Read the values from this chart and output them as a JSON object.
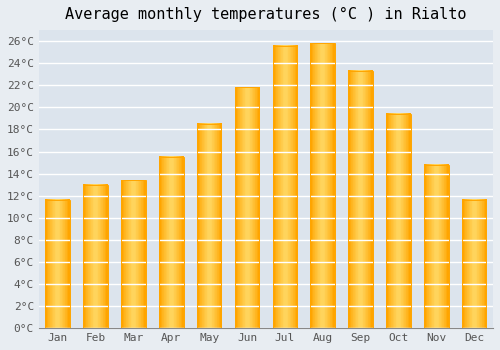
{
  "title": "Average monthly temperatures (°C ) in Rialto",
  "months": [
    "Jan",
    "Feb",
    "Mar",
    "Apr",
    "May",
    "Jun",
    "Jul",
    "Aug",
    "Sep",
    "Oct",
    "Nov",
    "Dec"
  ],
  "temperatures": [
    11.6,
    13.0,
    13.4,
    15.5,
    18.5,
    21.8,
    25.6,
    25.8,
    23.3,
    19.4,
    14.8,
    11.6
  ],
  "bar_color_center": "#FFD966",
  "bar_color_edge": "#FFA500",
  "background_color": "#e8edf2",
  "plot_bg_color": "#dce4ed",
  "grid_color": "#ffffff",
  "ylim": [
    0,
    27
  ],
  "ytick_step": 2,
  "title_fontsize": 11,
  "tick_fontsize": 8,
  "font_family": "monospace"
}
